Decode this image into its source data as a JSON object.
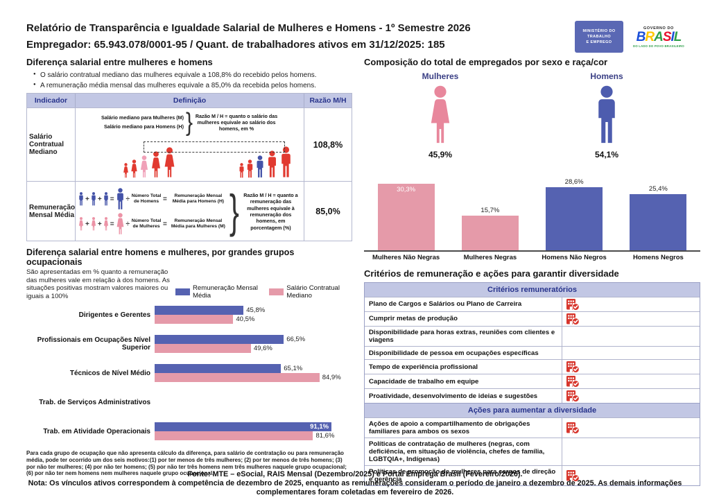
{
  "page": {
    "title_line1": "Relatório de Transparência e Igualdade Salarial de Mulheres e Homens - 1º Semestre 2026",
    "title_line2": "Empregador: 65.943.078/0001-95 / Quant. de trabalhadores ativos em 31/12/2025: 185"
  },
  "logos": {
    "ministry_lines": [
      "MINISTÉRIO DO",
      "TRABALHO",
      "E EMPREGO"
    ],
    "gov_top": "GOVERNO DO",
    "gov_name": "BRASIL",
    "gov_colors": [
      "#1b4fd8",
      "#ffc700",
      "#2e9e49",
      "#e8112d",
      "#1b4fd8",
      "#2e9e49"
    ],
    "gov_sub": "DO LADO DO POVO BRASILEIRO"
  },
  "wage_gap": {
    "title": "Diferença salarial entre mulheres e homens",
    "bullets": [
      "O salário contratual mediano das mulheres equivale a 108,8% do recebido pelos homens.",
      "A remuneração média mensal das mulheres equivale a 85,0% da recebida pelos homens."
    ],
    "table": {
      "headers": [
        "Indicador",
        "Definição",
        "Razão M/H"
      ],
      "row1": {
        "indicator": "Salário Contratual Mediano",
        "def_line1": "Salário mediano para Mulheres (M)",
        "def_line2": "Salário mediano para Homens (H)",
        "note": "Razão M / H = quanto o salário das mulheres equivale ao salário dos homens, em %",
        "ratio": "108,8%"
      },
      "row2": {
        "indicator": "Remuneração Mensal Média",
        "men_count_label": "Número Total de Homens",
        "men_result_label": "Remuneração Mensal Média para Homens (H)",
        "women_count_label": "Número Total de Mulheres",
        "women_result_label": "Remuneração Mensal Média para Mulheres (M)",
        "note": "Razão M / H = quanto a remuneração das mulheres equivale à remuneração dos homens, em porcentagem (%)",
        "ratio": "85,0%"
      }
    }
  },
  "composition": {
    "title": "Composição do total de empregados por sexo e raça/cor",
    "women_label": "Mulheres",
    "women_pct": "45,9%",
    "men_label": "Homens",
    "men_pct": "54,1%"
  },
  "occupational": {
    "title": "Diferença salarial entre homens e mulheres, por grandes grupos ocupacionais",
    "subtitle": "São apresentadas em % quanto a remuneração das mulheres vale em relação à dos homens. As situações positivas mostram valores maiores ou iguais a 100%",
    "footnote": "Para cada grupo de ocupação que não apresenta cálculo da diferença, para salário de contratação ou para remuneração média, pode ter ocorrido um dos seis motivos:(1) por ter menos de três mulheres; (2) por ter menos de três homens; (3) por não ter mulheres; (4) por não ter homens; (5) por não ter três homens nem três mulheres naquele grupo ocupacional; (6) por não ter nem homens nem mulheres naquele grupo ocupacional."
  },
  "chart_data": [
    {
      "type": "bar",
      "title": "Composição do total de empregados por sexo e raça/cor",
      "categories": [
        "Mulheres Não Negras",
        "Mulheres Negras",
        "Homens Não Negros",
        "Homens Negros"
      ],
      "values": [
        30.3,
        15.7,
        28.6,
        25.4
      ],
      "labels": [
        "30,3%",
        "15,7%",
        "28,6%",
        "25,4%"
      ],
      "colors": [
        "#e59aa9",
        "#e59aa9",
        "#5562b1",
        "#5562b1"
      ],
      "label_inside": [
        true,
        false,
        false,
        false
      ],
      "xlabel": "",
      "ylabel": "",
      "ylim": [
        0,
        35
      ],
      "grid": false,
      "legend": "none",
      "extra_totals": {
        "Mulheres": 45.9,
        "Homens": 54.1
      }
    },
    {
      "type": "bar",
      "orientation": "horizontal",
      "title": "Diferença salarial entre homens e mulheres, por grandes grupos ocupacionais",
      "categories": [
        "Dirigentes e Gerentes",
        "Profissionais em Ocupações Nível Superior",
        "Técnicos de Nível Médio",
        "Trab. de Serviços Administrativos",
        "Trab. em Atividade Operacionais"
      ],
      "series": [
        {
          "name": "Remuneração Mensal Média",
          "color": "#5562b1",
          "values": [
            45.8,
            66.5,
            65.1,
            null,
            91.1
          ],
          "labels": [
            "45,8%",
            "66,5%",
            "65,1%",
            "",
            "91,1%"
          ],
          "inside": [
            false,
            false,
            false,
            false,
            true
          ]
        },
        {
          "name": "Salário Contratual Mediano",
          "color": "#e59aa9",
          "values": [
            40.5,
            49.6,
            84.9,
            null,
            81.6
          ],
          "labels": [
            "40,5%",
            "49,6%",
            "84,9%",
            "",
            "81,6%"
          ],
          "inside": [
            false,
            false,
            false,
            false,
            false
          ]
        }
      ],
      "xlim": [
        0,
        100
      ],
      "grid": false,
      "legend_position": "top-right"
    }
  ],
  "criteria": {
    "title": "Critérios de remuneração e ações para garantir diversidade",
    "section1_header": "Critérios remuneratórios",
    "section1_rows": [
      {
        "label": "Plano de Cargos e Salários ou Plano de Carreira",
        "checked": true
      },
      {
        "label": "Cumprir metas de produção",
        "checked": true
      },
      {
        "label": "Disponibilidade para horas extras, reuniões com clientes e viagens",
        "checked": false
      },
      {
        "label": "Disponibilidade de pessoa em ocupações específicas",
        "checked": false
      },
      {
        "label": "Tempo de experiência profissional",
        "checked": true
      },
      {
        "label": "Capacidade de trabalho em equipe",
        "checked": true
      },
      {
        "label": "Proatividade, desenvolvimento de ideias e sugestões",
        "checked": true
      }
    ],
    "section2_header": "Ações para aumentar a diversidade",
    "section2_rows": [
      {
        "label": "Ações de apoio a compartilhamento de obrigações familiares para ambos os sexos",
        "checked": true
      },
      {
        "label": "Políticas de contratação de mulheres (negras, com deficiência, em situação de violência, chefes de família, LGBTQIA+, Indígenas)",
        "checked": false
      },
      {
        "label": "Políticas de promoção de mulheres para cargos de direção e gerência",
        "checked": true
      }
    ]
  },
  "footer": {
    "line1": "Fonte: MTE – eSocial, RAIS Mensal (Dezembro/2025) e Portal Emprega Brasil (Fevereiro/2026).",
    "line2": "Nota: Os vínculos ativos correspondem à competência de dezembro de 2025, enquanto as remunerações consideram o período de janeiro a dezembro de 2025. As demais informações complementares foram coletadas em fevereiro de 2026."
  },
  "colors": {
    "accent_blue": "#5562b1",
    "accent_pink": "#e59aa9",
    "figure_red": "#e13a30",
    "highlight_pink": "#f0a1b8",
    "highlight_blue": "#4453a8",
    "header_lavender": "#c2c7e4",
    "header_navy_text": "#27338b",
    "check_icon_red": "#d7352c"
  }
}
